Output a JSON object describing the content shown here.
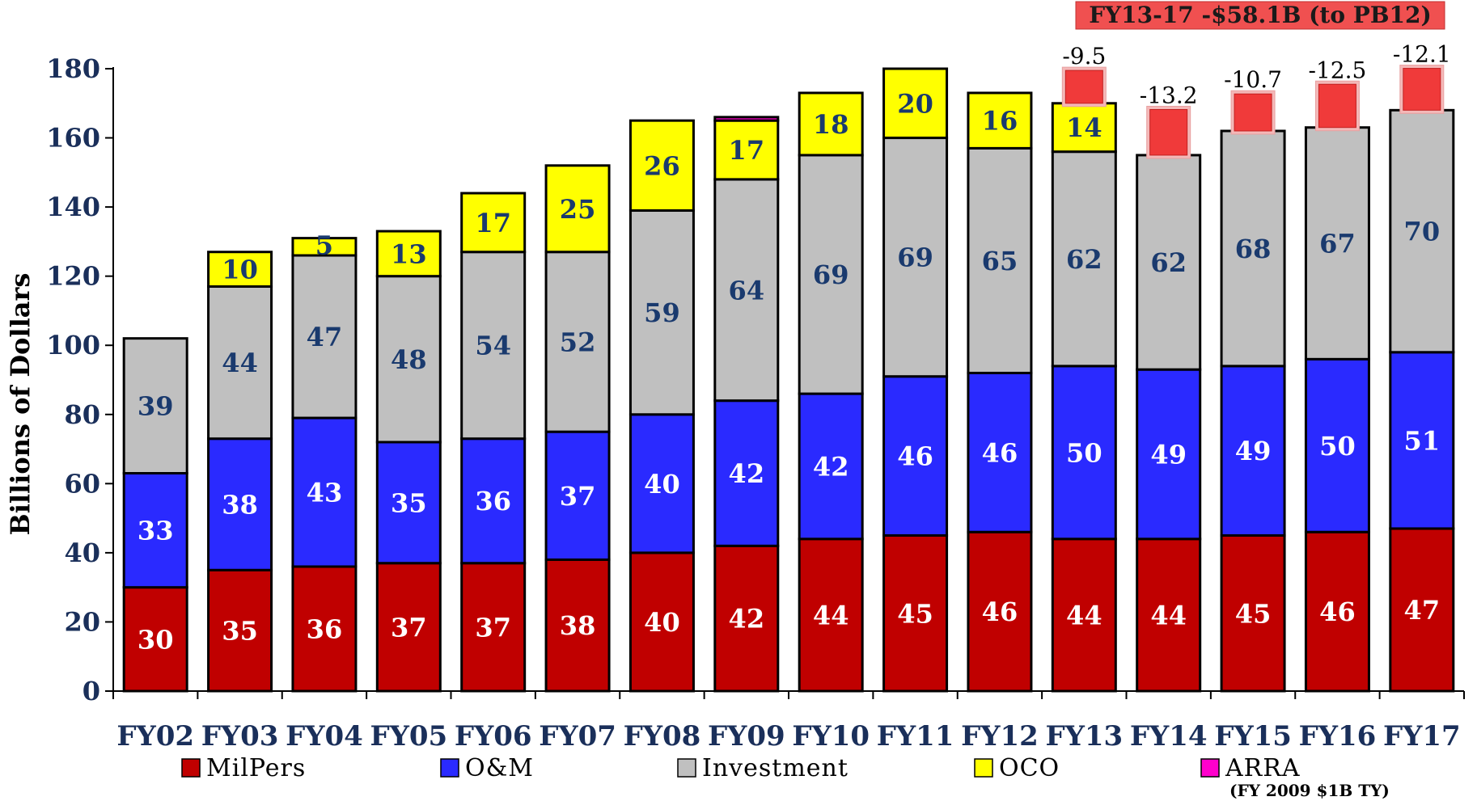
{
  "chart_data": {
    "type": "bar",
    "stacked": true,
    "categories": [
      "FY02",
      "FY03",
      "FY04",
      "FY05",
      "FY06",
      "FY07",
      "FY08",
      "FY09",
      "FY10",
      "FY11",
      "FY12",
      "FY13",
      "FY14",
      "FY15",
      "FY16",
      "FY17"
    ],
    "series": [
      {
        "name": "MilPers",
        "color": "#c00000",
        "label_color": "#ffffff",
        "values": [
          30,
          35,
          36,
          37,
          37,
          38,
          40,
          42,
          44,
          45,
          46,
          44,
          44,
          45,
          46,
          47
        ]
      },
      {
        "name": "O&M",
        "color": "#2a2aff",
        "label_color": "#ffffff",
        "values": [
          33,
          38,
          43,
          35,
          36,
          37,
          40,
          42,
          42,
          46,
          46,
          50,
          49,
          49,
          50,
          51
        ]
      },
      {
        "name": "Investment",
        "color": "#c0c0c0",
        "label_color": "#1a3a6e",
        "values": [
          39,
          44,
          47,
          48,
          54,
          52,
          59,
          64,
          69,
          69,
          65,
          62,
          62,
          68,
          67,
          70
        ]
      },
      {
        "name": "OCO",
        "color": "#ffff00",
        "label_color": "#1a3a6e",
        "values": [
          0,
          10,
          5,
          13,
          17,
          25,
          26,
          17,
          18,
          20,
          16,
          14,
          0,
          0,
          0,
          0
        ]
      },
      {
        "name": "ARRA",
        "color": "#ff00cc",
        "label_color": "#000000",
        "values": [
          0,
          0,
          0,
          0,
          0,
          0,
          0,
          1,
          0,
          0,
          0,
          0,
          0,
          0,
          0,
          0
        ]
      }
    ],
    "cuts": [
      {
        "category": "FY13",
        "value": -9.5,
        "label": "-9.5"
      },
      {
        "category": "FY14",
        "value": -13.2,
        "label": "-13.2"
      },
      {
        "category": "FY15",
        "value": -10.7,
        "label": "-10.7"
      },
      {
        "category": "FY16",
        "value": -12.5,
        "label": "-12.5"
      },
      {
        "category": "FY17",
        "value": -12.1,
        "label": "-12.1"
      }
    ],
    "banner": "FY13-17 -$58.1B  (to PB12)",
    "ylabel": "Billions of Dollars",
    "ylim": [
      0,
      180
    ],
    "yticks": [
      0,
      20,
      40,
      60,
      80,
      100,
      120,
      140,
      160,
      180
    ],
    "legend": {
      "placement": "bottom",
      "items": [
        "MilPers",
        "O&M",
        "Investment",
        "OCO",
        "ARRA"
      ],
      "note": "(FY 2009 $1B TY)"
    }
  }
}
